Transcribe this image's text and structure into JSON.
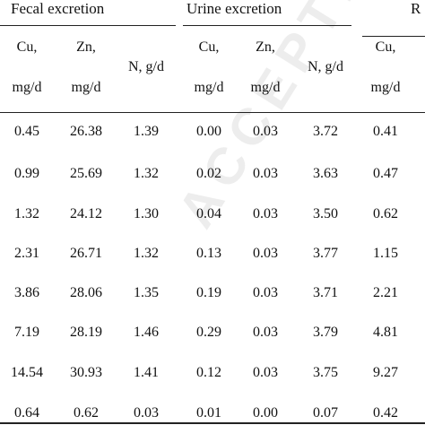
{
  "watermark": "ACCEPTED MANUSCRIPT",
  "groups": {
    "fecal": "Fecal excretion",
    "urine": "Urine excretion",
    "retention": "R"
  },
  "headers": [
    {
      "line1": "Cu,",
      "line2": "mg/d"
    },
    {
      "line1": "Zn,",
      "line2": "mg/d"
    },
    {
      "line1": "N, g/d",
      "line2": ""
    },
    {
      "line1": "Cu,",
      "line2": "mg/d"
    },
    {
      "line1": "Zn,",
      "line2": "mg/d"
    },
    {
      "line1": "N, g/d",
      "line2": ""
    },
    {
      "line1": "Cu,",
      "line2": "mg/d"
    }
  ],
  "rows": [
    [
      "0.45",
      "26.38",
      "1.39",
      "0.00",
      "0.03",
      "3.72",
      "0.41"
    ],
    [
      "0.99",
      "25.69",
      "1.32",
      "0.02",
      "0.03",
      "3.63",
      "0.47"
    ],
    [
      "1.32",
      "24.12",
      "1.30",
      "0.04",
      "0.03",
      "3.50",
      "0.62"
    ],
    [
      "2.31",
      "26.71",
      "1.32",
      "0.13",
      "0.03",
      "3.77",
      "1.15"
    ],
    [
      "3.86",
      "28.06",
      "1.35",
      "0.19",
      "0.03",
      "3.71",
      "2.21"
    ],
    [
      "7.19",
      "28.19",
      "1.46",
      "0.29",
      "0.03",
      "3.79",
      "4.81"
    ],
    [
      "14.54",
      "30.93",
      "1.41",
      "0.12",
      "0.03",
      "3.75",
      "9.27"
    ],
    [
      "0.64",
      "0.62",
      "0.03",
      "0.01",
      "0.00",
      "0.07",
      "0.42"
    ]
  ]
}
